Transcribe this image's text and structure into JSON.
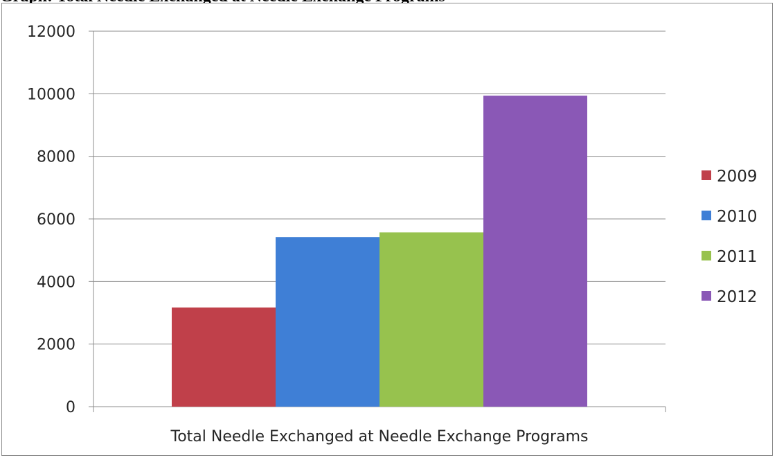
{
  "page": {
    "heading": "Graph: Total Needle Exchanged at Needle Exchange Programs"
  },
  "chart_data": {
    "type": "bar",
    "categories": [
      "Total Needle Exchanged at Needle Exchange Programs"
    ],
    "series": [
      {
        "name": "2009",
        "values": [
          3170
        ],
        "color": "#c0404a"
      },
      {
        "name": "2010",
        "values": [
          5420
        ],
        "color": "#3f7fd6"
      },
      {
        "name": "2011",
        "values": [
          5570
        ],
        "color": "#97c24e"
      },
      {
        "name": "2012",
        "values": [
          9940
        ],
        "color": "#8a58b6"
      }
    ],
    "yticks": [
      "0",
      "2000",
      "4000",
      "6000",
      "8000",
      "10000",
      "12000"
    ],
    "ylim": [
      0,
      12000
    ],
    "grid": true,
    "legend_position": "right",
    "title": "",
    "xlabel": "",
    "ylabel": ""
  }
}
